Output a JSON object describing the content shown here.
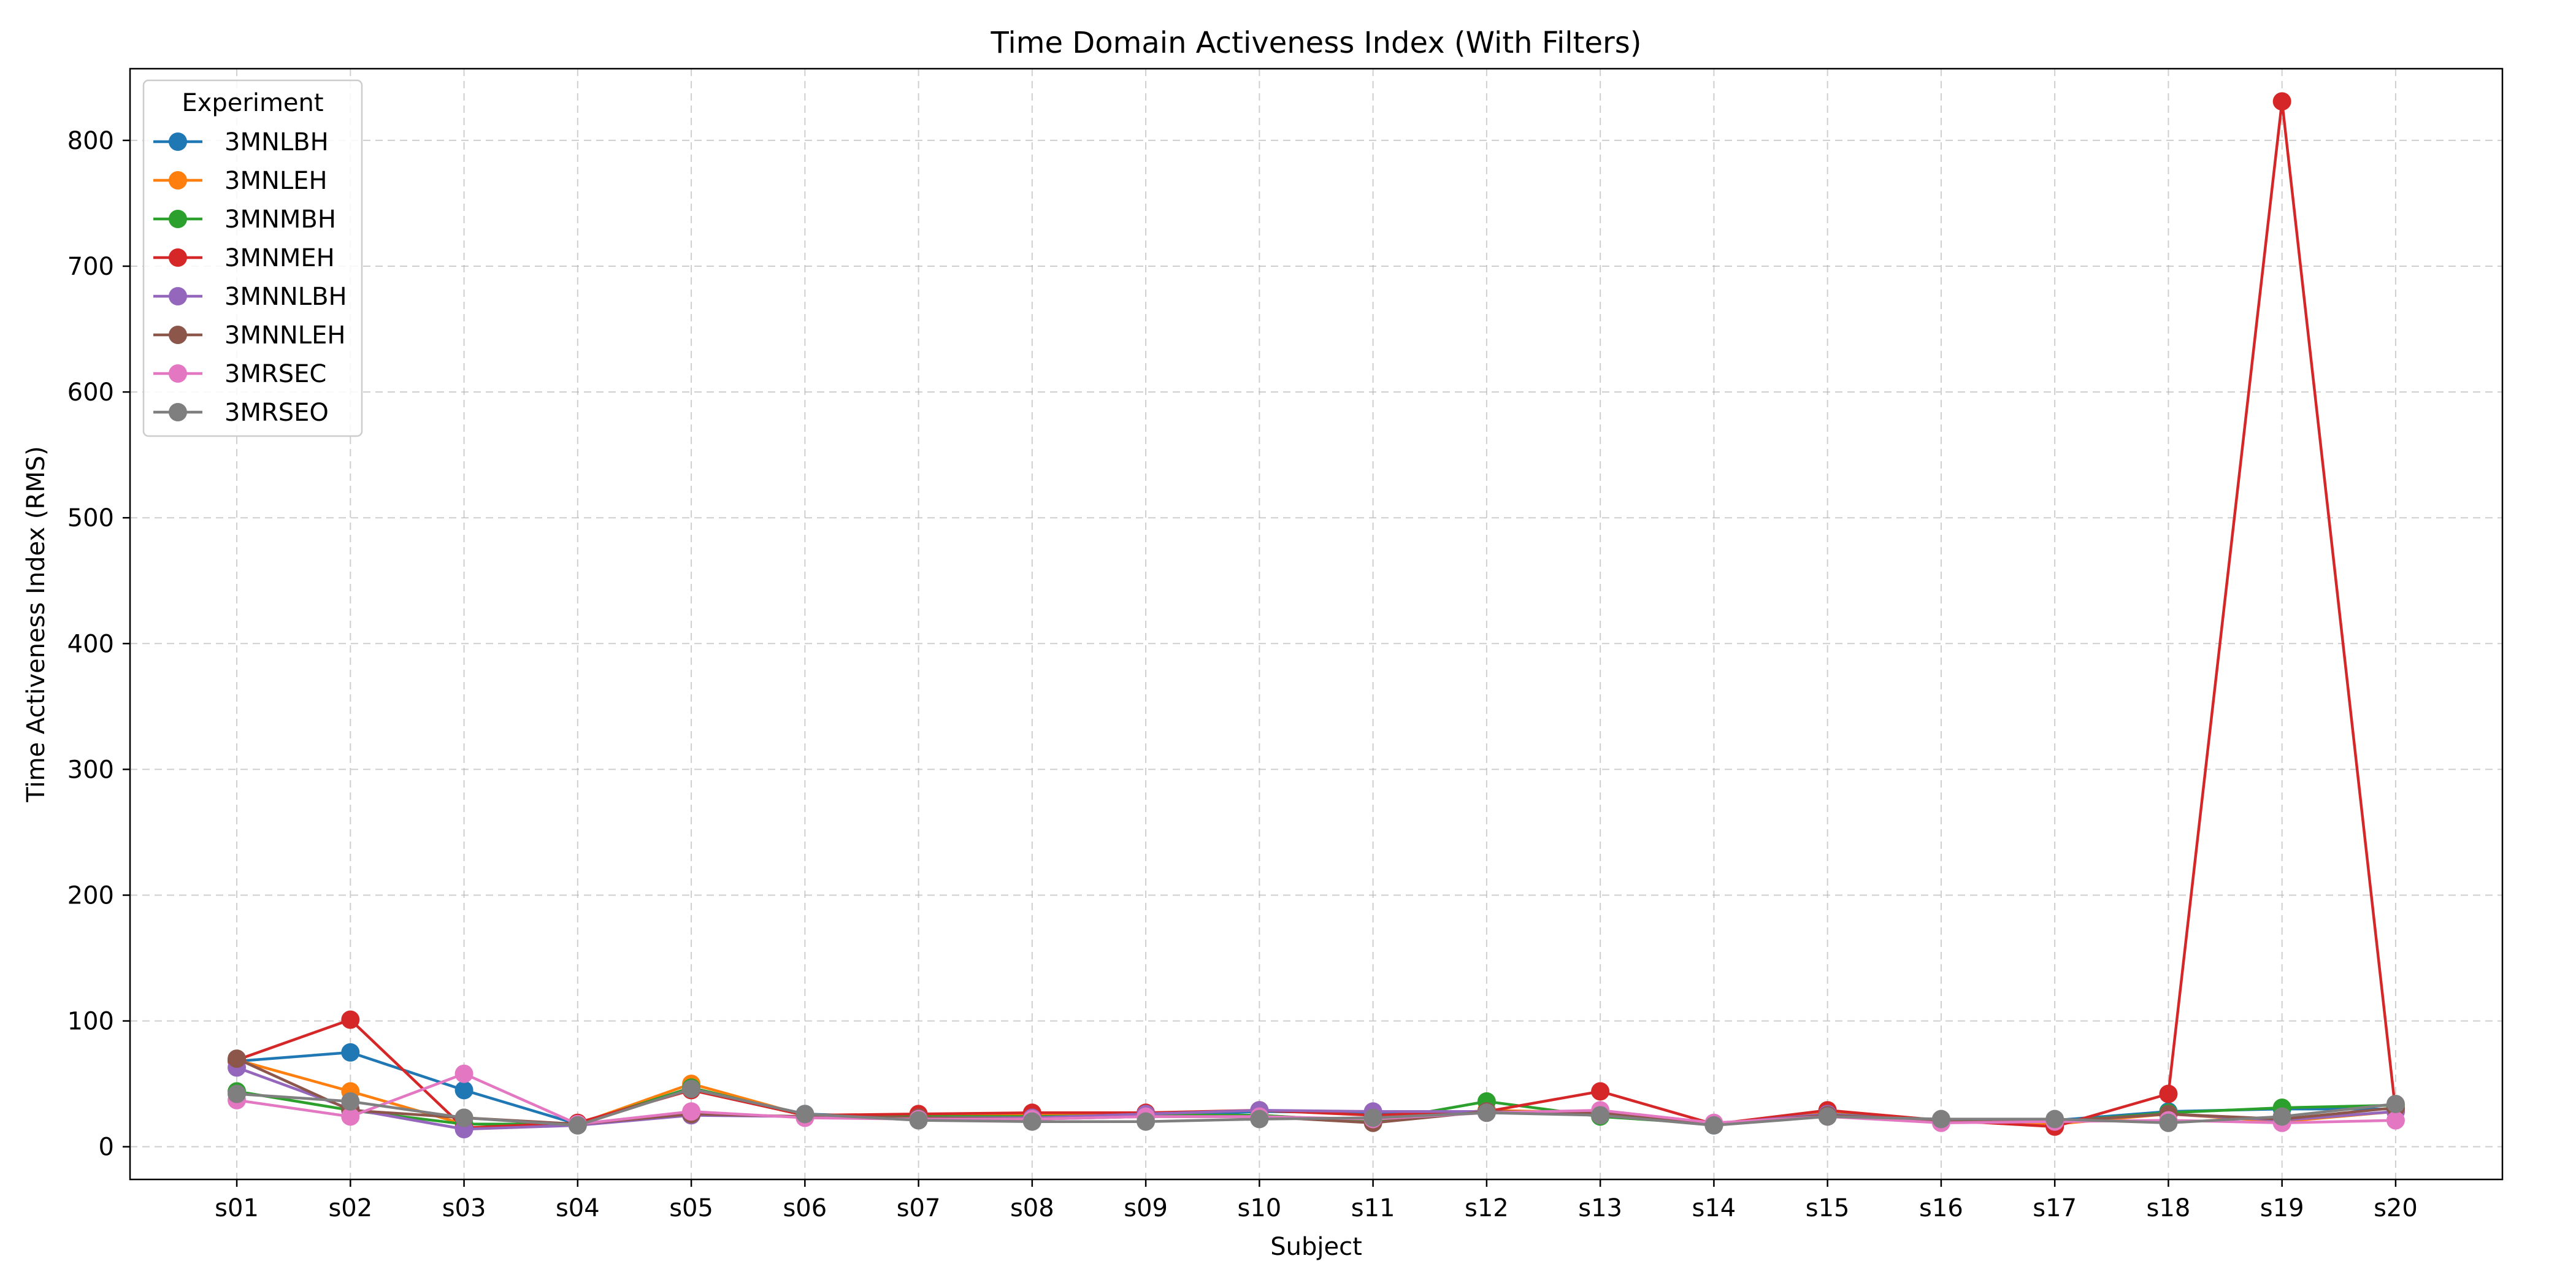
{
  "chart_data": {
    "type": "line",
    "title": "Time Domain Activeness Index (With Filters)",
    "xlabel": "Subject",
    "ylabel": "Time Activeness Index (RMS)",
    "categories": [
      "s01",
      "s02",
      "s03",
      "s04",
      "s05",
      "s06",
      "s07",
      "s08",
      "s09",
      "s10",
      "s11",
      "s12",
      "s13",
      "s14",
      "s15",
      "s16",
      "s17",
      "s18",
      "s19",
      "s20"
    ],
    "ylim": [
      -26,
      857
    ],
    "yticks": [
      0,
      100,
      200,
      300,
      400,
      500,
      600,
      700,
      800
    ],
    "grid": true,
    "legend": {
      "title": "Experiment",
      "placement": "top-left"
    },
    "series": [
      {
        "name": "3MNLBH",
        "color": "#1f77b4",
        "values": [
          68,
          75,
          45,
          18,
          46,
          26,
          23,
          23,
          24,
          28,
          27,
          28,
          27,
          17,
          26,
          20,
          21,
          28,
          30,
          30
        ]
      },
      {
        "name": "3MNLEH",
        "color": "#ff7f0e",
        "values": [
          69,
          44,
          18,
          18,
          50,
          25,
          25,
          25,
          25,
          25,
          20,
          29,
          27,
          18,
          27,
          20,
          18,
          26,
          20,
          28
        ]
      },
      {
        "name": "3MNMBH",
        "color": "#2ca02c",
        "values": [
          44,
          29,
          18,
          18,
          47,
          25,
          24,
          24,
          25,
          25,
          20,
          36,
          24,
          18,
          26,
          21,
          20,
          27,
          31,
          33
        ]
      },
      {
        "name": "3MNMEH",
        "color": "#d62728",
        "values": [
          69,
          101,
          15,
          19,
          45,
          25,
          26,
          27,
          27,
          29,
          25,
          28,
          44,
          18,
          29,
          21,
          16,
          42,
          831,
          28
        ]
      },
      {
        "name": "3MNNLBH",
        "color": "#9467bd",
        "values": [
          63,
          30,
          14,
          17,
          25,
          24,
          23,
          23,
          26,
          29,
          28,
          28,
          26,
          18,
          26,
          20,
          20,
          26,
          21,
          28
        ]
      },
      {
        "name": "3MNNLEH",
        "color": "#8c564b",
        "values": [
          70,
          29,
          23,
          18,
          26,
          24,
          23,
          22,
          24,
          24,
          19,
          28,
          27,
          18,
          25,
          21,
          20,
          26,
          22,
          31
        ]
      },
      {
        "name": "3MRSEC",
        "color": "#e377c2",
        "values": [
          37,
          24,
          58,
          18,
          28,
          23,
          22,
          22,
          24,
          24,
          22,
          27,
          29,
          19,
          24,
          19,
          20,
          21,
          19,
          21
        ]
      },
      {
        "name": "3MRSEO",
        "color": "#7f7f7f",
        "values": [
          42,
          36,
          23,
          17,
          46,
          26,
          21,
          20,
          20,
          22,
          23,
          27,
          25,
          17,
          24,
          22,
          22,
          19,
          24,
          34
        ]
      }
    ]
  }
}
